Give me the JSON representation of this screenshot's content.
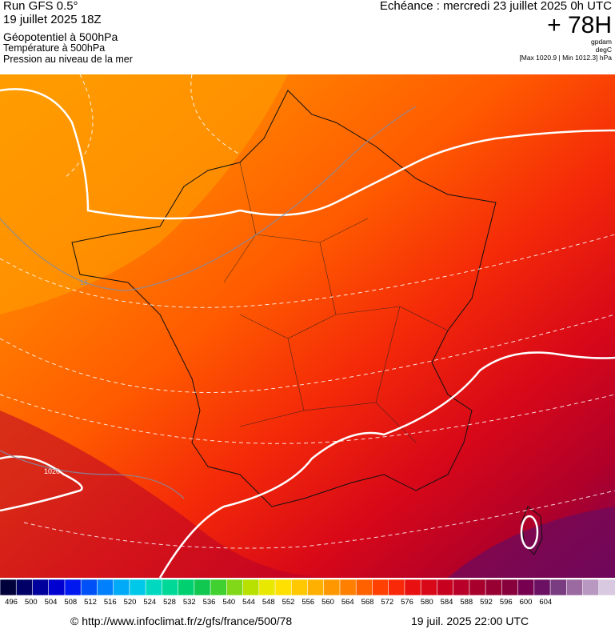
{
  "header": {
    "run": "Run GFS 0.5°",
    "run_date": "19 juillet 2025 18Z",
    "field_geopotential": "Géopotentiel à 500hPa",
    "field_temperature": "Température à 500hPa",
    "field_pressure": "Pression au niveau de la mer",
    "echeance": "Echéance : mercredi 23 juillet 2025 0h UTC",
    "lead": "+ 78H",
    "unit_gpdam": "gpdam",
    "unit_degc": "degC",
    "minmax": "[Max 1020.9 | Min 1012.3] hPa"
  },
  "map": {
    "isobar_labels": [
      "16",
      "1020"
    ]
  },
  "scale": {
    "values": [
      "496",
      "500",
      "504",
      "508",
      "512",
      "516",
      "520",
      "524",
      "528",
      "532",
      "536",
      "540",
      "544",
      "548",
      "552",
      "556",
      "560",
      "564",
      "568",
      "572",
      "576",
      "580",
      "584",
      "588",
      "592",
      "596",
      "600",
      "604"
    ],
    "colors": [
      "#00003a",
      "#000066",
      "#00009c",
      "#0000d0",
      "#0018f0",
      "#0050f8",
      "#0080fc",
      "#00aaf8",
      "#00c8e8",
      "#00d8c0",
      "#00d898",
      "#00d070",
      "#10c850",
      "#40d030",
      "#80d818",
      "#b8e000",
      "#e8e800",
      "#ffe000",
      "#ffc800",
      "#ffb000",
      "#ff9800",
      "#ff8000",
      "#ff6000",
      "#ff4000",
      "#f82808",
      "#e81010",
      "#d80818",
      "#c80020",
      "#b80028",
      "#a8002c",
      "#980034",
      "#88003c",
      "#780050",
      "#6c1064",
      "#7a3c80",
      "#9a6aa0",
      "#b898c0",
      "#d8c8e0"
    ]
  },
  "footer": {
    "url": "© http://www.infoclimat.fr/z/gfs/france/500/78",
    "timestamp": "19 juil. 2025 22:00 UTC"
  }
}
